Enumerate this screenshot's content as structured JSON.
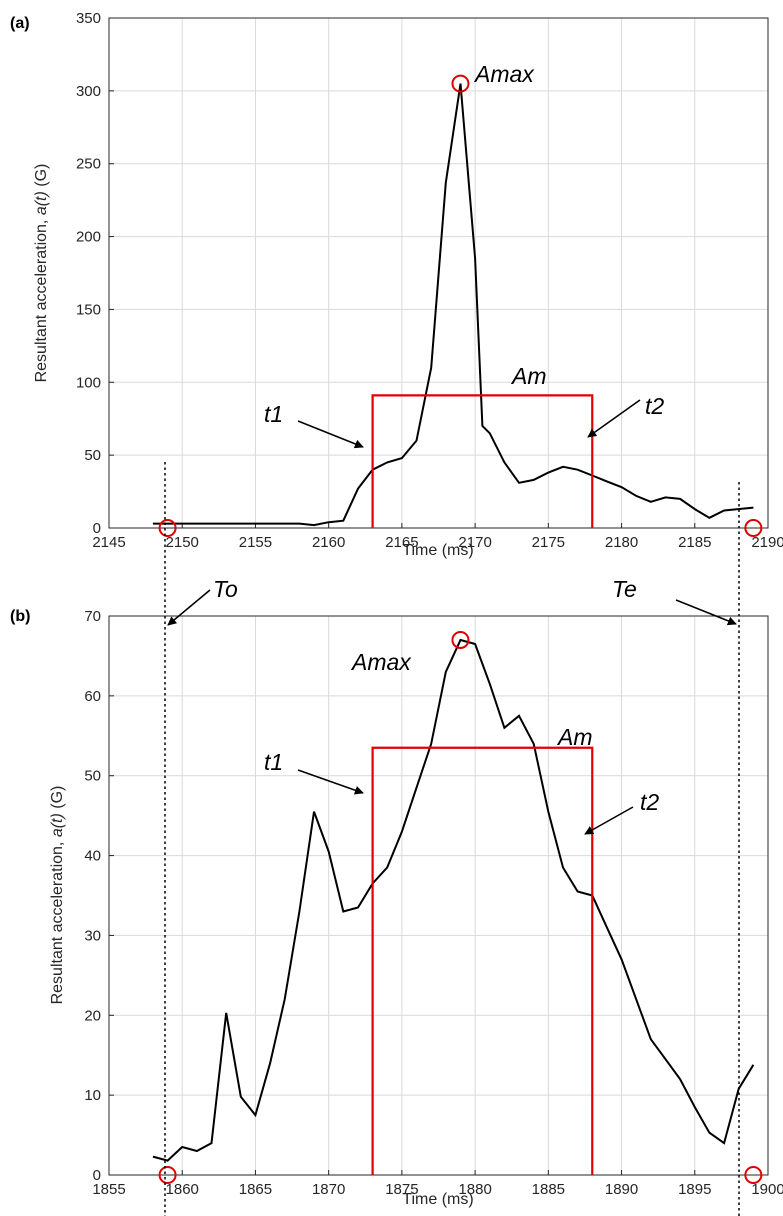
{
  "chart_data": [
    {
      "panel_label": "(a)",
      "type": "line",
      "xlabel": "Time (ms)",
      "ylabel": "Resultant acceleration,",
      "ylabel_italic": "a(t)",
      "ylabel_unit": "(G)",
      "xlim": [
        2145,
        2190
      ],
      "ylim": [
        0,
        350
      ],
      "xticks": [
        2145,
        2150,
        2155,
        2160,
        2165,
        2170,
        2175,
        2180,
        2185,
        2190
      ],
      "yticks": [
        0,
        50,
        100,
        150,
        200,
        250,
        300,
        350
      ],
      "grid": true,
      "series": [
        {
          "color": "#000000",
          "x": [
            2148,
            2150,
            2152,
            2154,
            2156,
            2157,
            2158,
            2159,
            2160,
            2161,
            2162,
            2163,
            2164,
            2165,
            2166,
            2167,
            2168,
            2169,
            2170,
            2170.5,
            2171,
            2172,
            2173,
            2174,
            2175,
            2176,
            2177,
            2178,
            2179,
            2180,
            2181,
            2182,
            2183,
            2184,
            2185,
            2186,
            2187,
            2189
          ],
          "y": [
            3,
            3,
            3,
            3,
            3,
            3,
            3,
            2,
            4,
            5,
            27,
            40,
            45,
            48,
            60,
            110,
            237,
            305,
            185,
            70,
            65,
            45,
            31,
            33,
            38,
            42,
            40,
            36,
            32,
            28,
            22,
            18,
            21,
            20,
            13,
            7,
            12,
            14
          ]
        }
      ],
      "am": {
        "t1": 2163,
        "t2": 2178,
        "value": 91,
        "color": "#e00000"
      },
      "markers": [
        {
          "x": 2149,
          "y": 0
        },
        {
          "x": 2169,
          "y": 305
        },
        {
          "x": 2189,
          "y": 0
        }
      ],
      "vlines": [
        2149,
        2189
      ],
      "annotations": {
        "amax": "Amax",
        "am": "Am",
        "t1": "t1",
        "t2": "t2"
      }
    },
    {
      "panel_label": "(b)",
      "type": "line",
      "xlabel": "Time (ms)",
      "ylabel": "Resultant acceleration,",
      "ylabel_italic": "a(t)",
      "ylabel_unit": "(G)",
      "xlim": [
        1855,
        1900
      ],
      "ylim": [
        0,
        70
      ],
      "xticks": [
        1855,
        1860,
        1865,
        1870,
        1875,
        1880,
        1885,
        1890,
        1895,
        1900
      ],
      "yticks": [
        0,
        10,
        20,
        30,
        40,
        50,
        60,
        70
      ],
      "grid": true,
      "series": [
        {
          "color": "#000000",
          "x": [
            1858,
            1859,
            1860,
            1861,
            1862,
            1863,
            1864,
            1865,
            1866,
            1867,
            1868,
            1869,
            1870,
            1871,
            1872,
            1873,
            1874,
            1875,
            1876,
            1877,
            1878,
            1879,
            1880,
            1881,
            1882,
            1883,
            1884,
            1885,
            1886,
            1887,
            1888,
            1889,
            1890,
            1891,
            1892,
            1893,
            1894,
            1895,
            1896,
            1897,
            1898,
            1899
          ],
          "y": [
            2.3,
            1.8,
            3.5,
            3,
            4,
            20.3,
            9.8,
            7.5,
            14,
            22,
            33,
            45.5,
            40.5,
            33,
            33.5,
            36.5,
            38.5,
            43,
            48.5,
            54,
            63,
            67,
            66.5,
            61.5,
            56,
            57.5,
            54,
            45.5,
            38.5,
            35.5,
            35,
            31,
            27,
            22,
            17,
            14.5,
            12,
            8.5,
            5.3,
            4,
            10.8,
            13.8
          ]
        }
      ],
      "am": {
        "t1": 1873,
        "t2": 1888,
        "value": 53.5,
        "color": "#e00000"
      },
      "markers": [
        {
          "x": 1859,
          "y": 0
        },
        {
          "x": 1879,
          "y": 67
        },
        {
          "x": 1899,
          "y": 0
        }
      ],
      "vlines": [
        1859,
        1899
      ],
      "annotations": {
        "amax": "Amax",
        "am": "Am",
        "t1": "t1",
        "t2": "t2"
      }
    }
  ],
  "shared_annotations": {
    "to": "To",
    "te": "Te"
  }
}
